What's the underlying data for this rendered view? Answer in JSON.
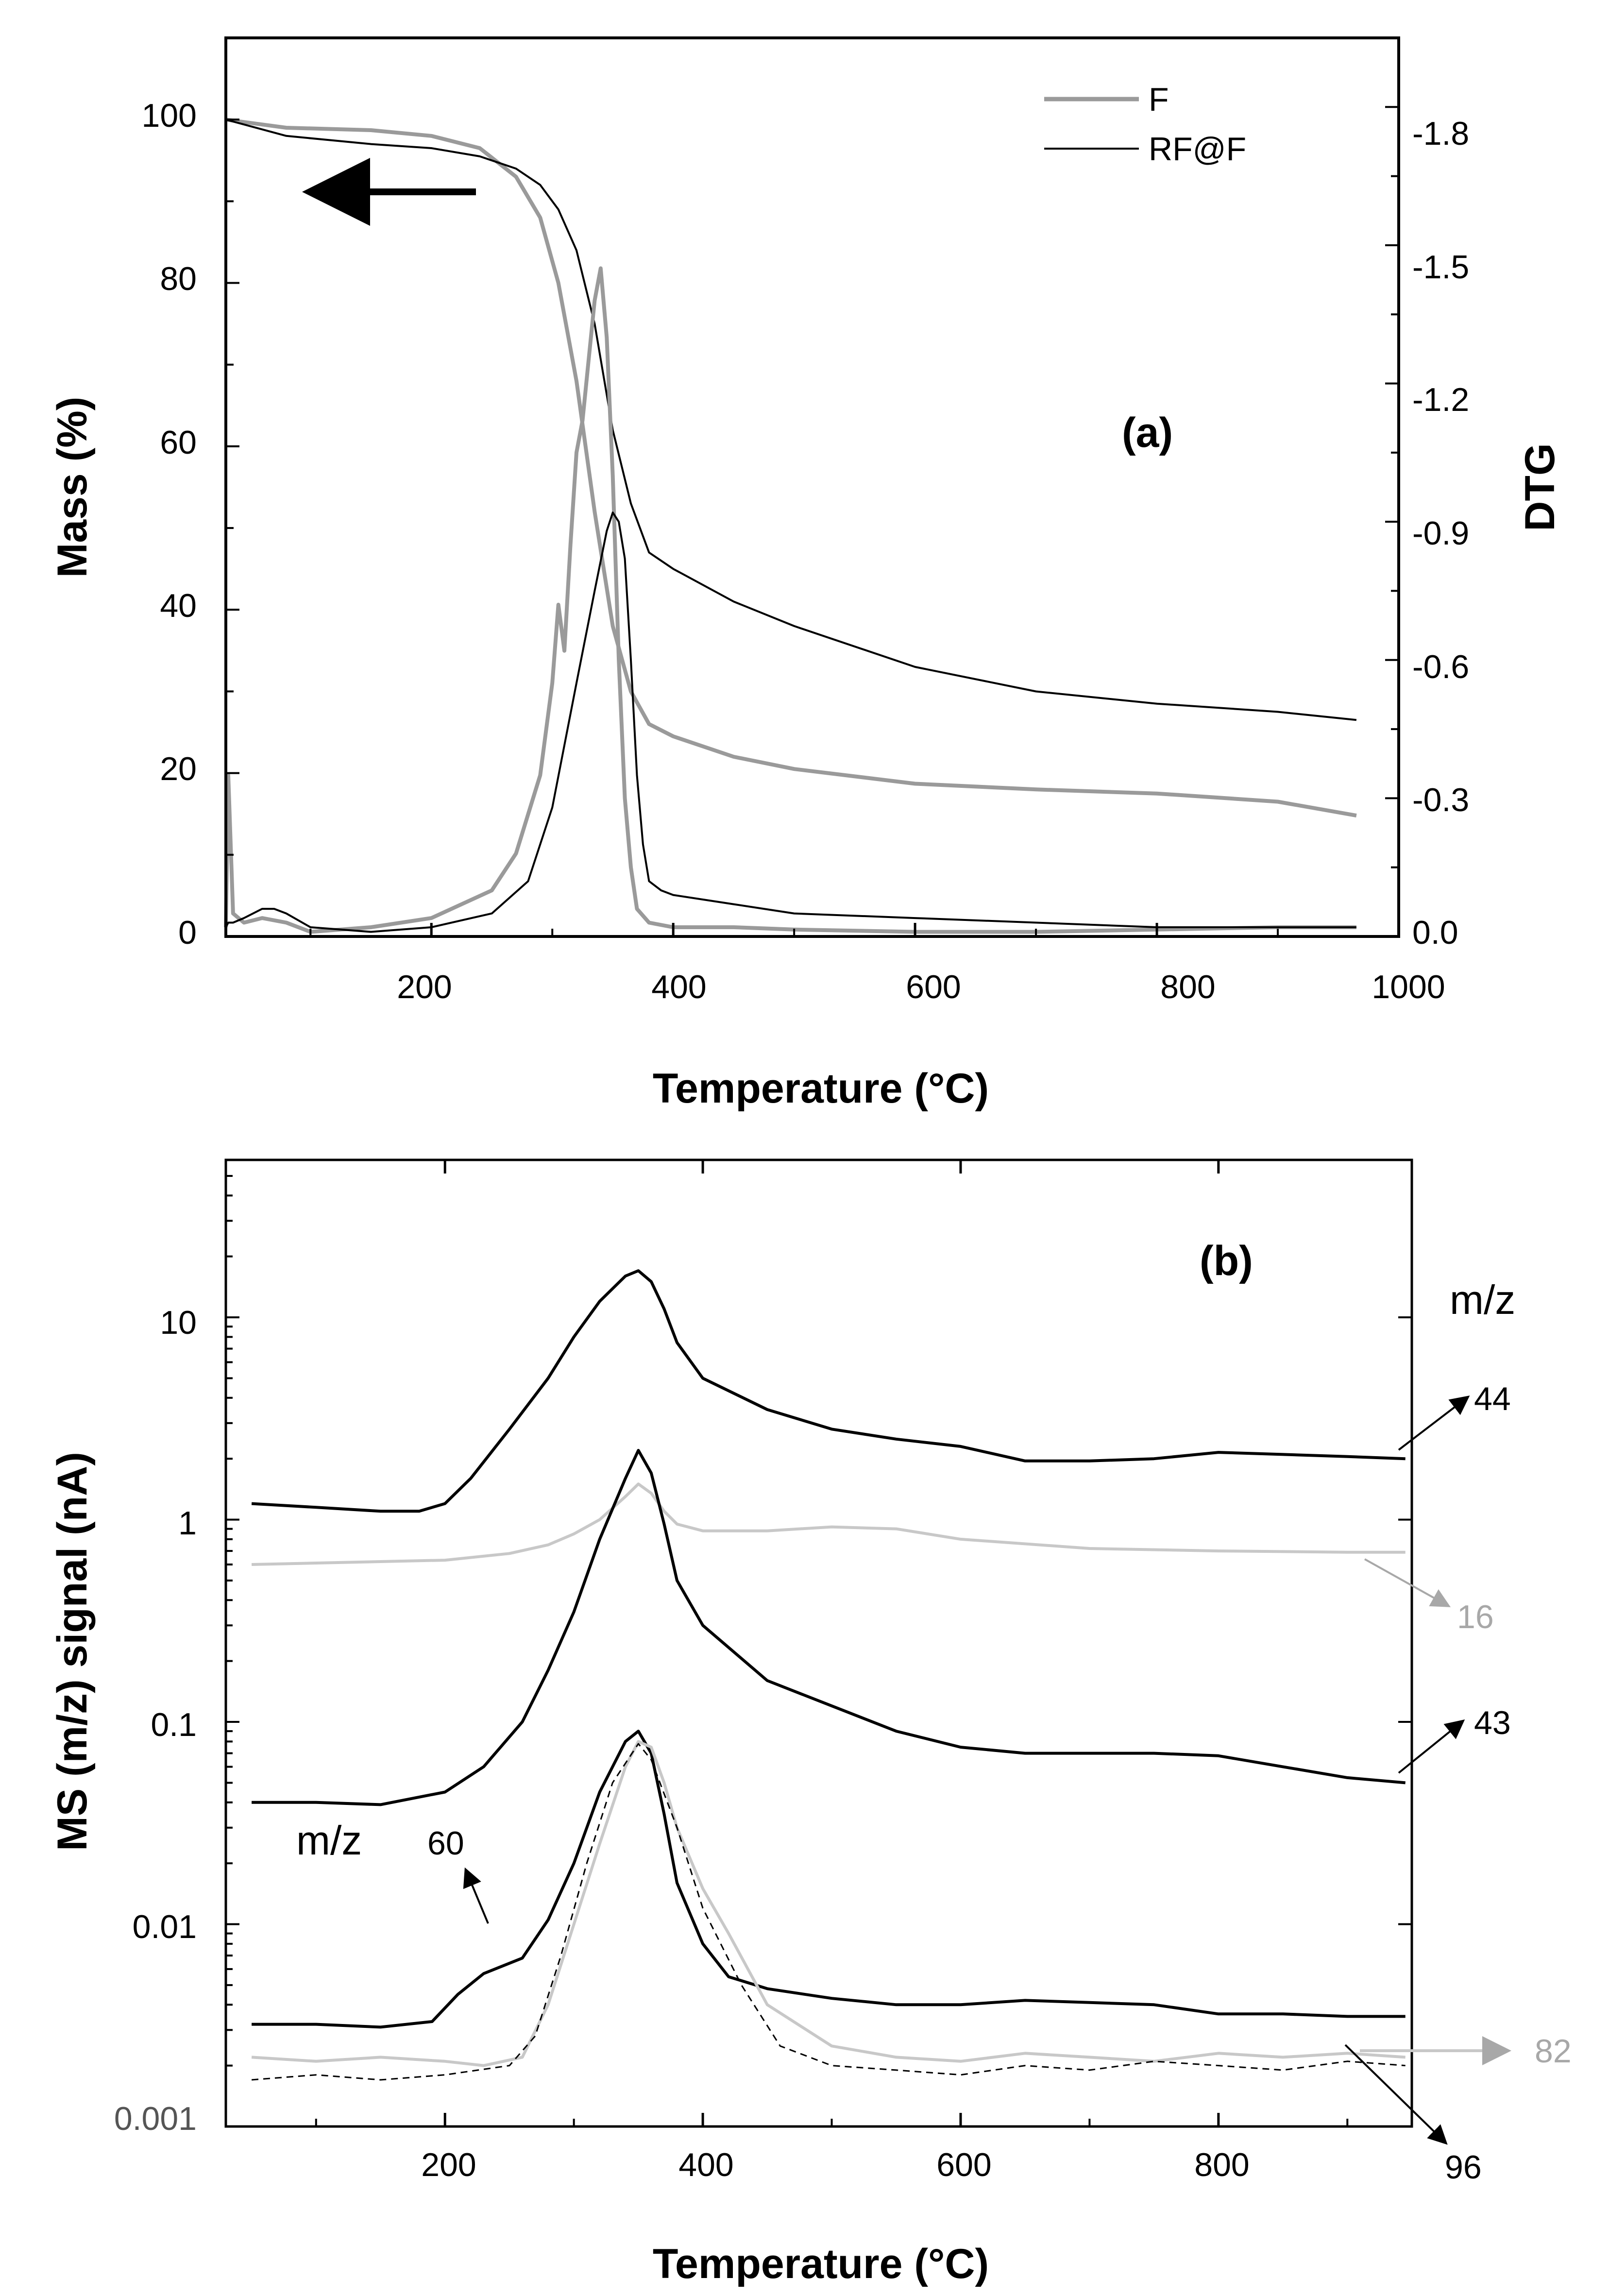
{
  "chart_data": [
    {
      "id": "a",
      "type": "line",
      "panel_label": "(a)",
      "xlabel": "Temperature (°C)",
      "ylabel": "Mass (%)",
      "y2label": "DTG",
      "xlim": [
        30,
        1000
      ],
      "ylim": [
        0,
        110
      ],
      "y2lim": [
        0.0,
        -1.95
      ],
      "xticks": [
        "200",
        "400",
        "600",
        "800",
        "1000"
      ],
      "yticks": [
        "0",
        "20",
        "40",
        "60",
        "80",
        "100"
      ],
      "y2ticks": [
        "0.0",
        "-0.3",
        "-0.6",
        "-0.9",
        "-1.2",
        "-1.5",
        "-1.8"
      ],
      "legend": {
        "position": "top-right",
        "entries": [
          {
            "label": "F",
            "color": "#9a9a9a"
          },
          {
            "label": "RF@F",
            "color": "#000000"
          }
        ]
      },
      "arrow_annotation": "arrow pointing to left (mass) axis",
      "series": [
        {
          "name": "F (mass)",
          "axis": "left",
          "color": "#9a9a9a",
          "x": [
            30,
            80,
            150,
            200,
            240,
            270,
            290,
            305,
            320,
            335,
            350,
            365,
            380,
            400,
            450,
            500,
            600,
            700,
            800,
            900,
            965
          ],
          "y": [
            100,
            99,
            98.7,
            98,
            96.5,
            93,
            88,
            80,
            68,
            52,
            38,
            30,
            26,
            24.5,
            22,
            20.5,
            18.7,
            18,
            17.5,
            16.5,
            14.8
          ]
        },
        {
          "name": "RF@F (mass)",
          "axis": "left",
          "color": "#000000",
          "x": [
            30,
            80,
            150,
            200,
            240,
            270,
            290,
            305,
            320,
            335,
            350,
            365,
            380,
            400,
            450,
            500,
            600,
            700,
            800,
            900,
            965
          ],
          "y": [
            100,
            98,
            97,
            96.5,
            95.5,
            94,
            92,
            89,
            84,
            75,
            62,
            53,
            47,
            45,
            41,
            38,
            33,
            30,
            28.5,
            27.5,
            26.5
          ]
        },
        {
          "name": "F (DTG)",
          "axis": "right",
          "color": "#9a9a9a",
          "x": [
            30,
            32,
            36,
            45,
            60,
            80,
            100,
            150,
            200,
            250,
            270,
            290,
            300,
            305,
            310,
            315,
            320,
            325,
            330,
            335,
            340,
            345,
            350,
            355,
            360,
            365,
            370,
            380,
            400,
            450,
            500,
            600,
            700,
            800,
            900,
            965
          ],
          "y": [
            -0.02,
            -0.35,
            -0.05,
            -0.03,
            -0.04,
            -0.03,
            -0.01,
            -0.02,
            -0.04,
            -0.1,
            -0.18,
            -0.35,
            -0.55,
            -0.72,
            -0.62,
            -0.85,
            -1.05,
            -1.12,
            -1.25,
            -1.38,
            -1.45,
            -1.3,
            -1.0,
            -0.6,
            -0.3,
            -0.15,
            -0.06,
            -0.03,
            -0.02,
            -0.02,
            -0.015,
            -0.01,
            -0.01,
            -0.015,
            -0.02,
            -0.02
          ]
        },
        {
          "name": "RF@F (DTG)",
          "axis": "right",
          "color": "#000000",
          "x": [
            30,
            32,
            36,
            45,
            60,
            70,
            80,
            100,
            150,
            200,
            250,
            280,
            300,
            320,
            335,
            345,
            350,
            355,
            360,
            365,
            370,
            375,
            380,
            390,
            400,
            450,
            500,
            600,
            700,
            800,
            900,
            965
          ],
          "y": [
            -0.02,
            -0.03,
            -0.03,
            -0.04,
            -0.06,
            -0.06,
            -0.05,
            -0.02,
            -0.01,
            -0.02,
            -0.05,
            -0.12,
            -0.28,
            -0.55,
            -0.75,
            -0.88,
            -0.92,
            -0.9,
            -0.82,
            -0.6,
            -0.35,
            -0.2,
            -0.12,
            -0.1,
            -0.09,
            -0.07,
            -0.05,
            -0.04,
            -0.03,
            -0.02,
            -0.02,
            -0.02
          ]
        }
      ]
    },
    {
      "id": "b",
      "type": "line",
      "panel_label": "(b)",
      "xlabel": "Temperature (°C)",
      "ylabel": "MS (m/z) signal (nA)",
      "yscale": "log",
      "xlim": [
        30,
        950
      ],
      "ylim": [
        0.001,
        60
      ],
      "xticks": [
        "200",
        "400",
        "600",
        "800"
      ],
      "yticks": [
        "0.001",
        "0.01",
        "0.1",
        "1",
        "10"
      ],
      "mz_header": "m/z",
      "left_mz_label": "m/z",
      "series": [
        {
          "name": "44",
          "color": "#000000",
          "label_color": "#000000",
          "x": [
            50,
            100,
            150,
            180,
            200,
            220,
            250,
            280,
            300,
            320,
            340,
            350,
            360,
            370,
            380,
            400,
            450,
            500,
            550,
            600,
            650,
            700,
            750,
            800,
            850,
            900,
            945
          ],
          "y": [
            1.2,
            1.15,
            1.1,
            1.1,
            1.2,
            1.6,
            2.8,
            5,
            8,
            12,
            16,
            17,
            15,
            11,
            7.5,
            5,
            3.5,
            2.8,
            2.5,
            2.3,
            1.95,
            1.95,
            2.0,
            2.15,
            2.1,
            2.05,
            2.0
          ]
        },
        {
          "name": "16",
          "color": "#c8c8c8",
          "label_color": "#a8a8a8",
          "x": [
            50,
            100,
            150,
            200,
            250,
            280,
            300,
            320,
            340,
            350,
            360,
            370,
            380,
            400,
            450,
            500,
            550,
            600,
            700,
            800,
            900,
            945
          ],
          "y": [
            0.6,
            0.61,
            0.62,
            0.63,
            0.68,
            0.75,
            0.85,
            1.0,
            1.3,
            1.5,
            1.35,
            1.1,
            0.95,
            0.88,
            0.88,
            0.92,
            0.9,
            0.8,
            0.72,
            0.7,
            0.69,
            0.69
          ]
        },
        {
          "name": "43",
          "color": "#000000",
          "label_color": "#000000",
          "x": [
            50,
            100,
            150,
            200,
            230,
            260,
            280,
            300,
            320,
            340,
            350,
            360,
            370,
            380,
            400,
            450,
            500,
            550,
            600,
            650,
            700,
            750,
            800,
            850,
            900,
            945
          ],
          "y": [
            0.04,
            0.04,
            0.039,
            0.045,
            0.06,
            0.1,
            0.18,
            0.35,
            0.8,
            1.6,
            2.2,
            1.7,
            0.95,
            0.5,
            0.3,
            0.16,
            0.12,
            0.09,
            0.075,
            0.07,
            0.07,
            0.07,
            0.068,
            0.06,
            0.053,
            0.05
          ]
        },
        {
          "name": "60",
          "color": "#000000",
          "label_color": "#000000",
          "x": [
            50,
            100,
            150,
            190,
            210,
            230,
            260,
            280,
            300,
            320,
            340,
            350,
            360,
            370,
            380,
            400,
            420,
            450,
            500,
            550,
            600,
            650,
            700,
            750,
            800,
            850,
            900,
            945
          ],
          "y": [
            0.0032,
            0.0032,
            0.0031,
            0.0033,
            0.0045,
            0.0057,
            0.0068,
            0.0105,
            0.02,
            0.045,
            0.08,
            0.09,
            0.07,
            0.035,
            0.016,
            0.008,
            0.0055,
            0.0048,
            0.0043,
            0.004,
            0.004,
            0.0042,
            0.0041,
            0.004,
            0.0036,
            0.0036,
            0.0035,
            0.0035
          ]
        },
        {
          "name": "82",
          "color": "#c8c8c8",
          "label_color": "#a8a8a8",
          "x": [
            50,
            100,
            150,
            200,
            230,
            260,
            280,
            300,
            320,
            340,
            350,
            360,
            370,
            380,
            400,
            420,
            450,
            500,
            550,
            600,
            650,
            700,
            750,
            800,
            850,
            900,
            945
          ],
          "y": [
            0.0022,
            0.0021,
            0.0022,
            0.0021,
            0.002,
            0.0022,
            0.004,
            0.01,
            0.025,
            0.06,
            0.08,
            0.075,
            0.05,
            0.03,
            0.015,
            0.009,
            0.004,
            0.0025,
            0.0022,
            0.0021,
            0.0023,
            0.0022,
            0.0021,
            0.0023,
            0.0022,
            0.0023,
            0.0022
          ]
        },
        {
          "name": "96",
          "color": "#000000",
          "label_color": "#000000",
          "dashed": true,
          "x": [
            50,
            100,
            150,
            200,
            250,
            270,
            290,
            310,
            330,
            350,
            360,
            380,
            400,
            430,
            460,
            500,
            550,
            600,
            650,
            700,
            750,
            800,
            850,
            900,
            945
          ],
          "y": [
            0.0017,
            0.0018,
            0.0017,
            0.0018,
            0.002,
            0.0028,
            0.007,
            0.02,
            0.05,
            0.078,
            0.065,
            0.03,
            0.012,
            0.005,
            0.0025,
            0.002,
            0.0019,
            0.0018,
            0.002,
            0.0019,
            0.0021,
            0.002,
            0.0019,
            0.0021,
            0.002
          ]
        }
      ]
    }
  ]
}
